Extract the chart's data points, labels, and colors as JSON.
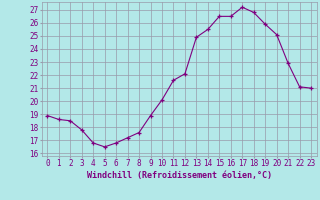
{
  "x": [
    0,
    1,
    2,
    3,
    4,
    5,
    6,
    7,
    8,
    9,
    10,
    11,
    12,
    13,
    14,
    15,
    16,
    17,
    18,
    19,
    20,
    21,
    22,
    23
  ],
  "y": [
    18.9,
    18.6,
    18.5,
    17.8,
    16.8,
    16.5,
    16.8,
    17.2,
    17.6,
    18.9,
    20.1,
    21.6,
    22.1,
    24.9,
    25.5,
    26.5,
    26.5,
    27.2,
    26.8,
    25.9,
    25.1,
    22.9,
    21.1,
    21.0
  ],
  "line_color": "#800080",
  "marker": "+",
  "bg_color": "#b3e8e8",
  "grid_color": "#9999aa",
  "xlabel": "Windchill (Refroidissement éolien,°C)",
  "ylabel_ticks": [
    16,
    17,
    18,
    19,
    20,
    21,
    22,
    23,
    24,
    25,
    26,
    27
  ],
  "xlim": [
    -0.5,
    23.5
  ],
  "ylim": [
    15.8,
    27.6
  ],
  "xticks": [
    0,
    1,
    2,
    3,
    4,
    5,
    6,
    7,
    8,
    9,
    10,
    11,
    12,
    13,
    14,
    15,
    16,
    17,
    18,
    19,
    20,
    21,
    22,
    23
  ],
  "font_color": "#800080",
  "tick_fontsize": 5.5,
  "xlabel_fontsize": 6.0
}
